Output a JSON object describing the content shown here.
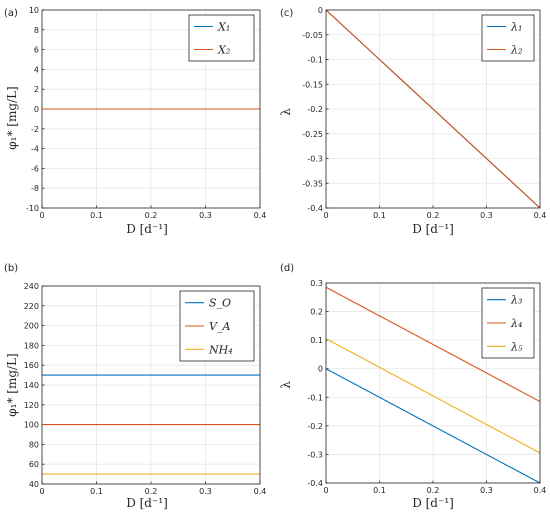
{
  "colors": {
    "blue": "#0072BD",
    "orange": "#D95319",
    "yellow": "#EDB120"
  },
  "panels": [
    {
      "label": "(a)",
      "ylabel": "φ₁* [mg/L]",
      "xlabel": "D [d⁻¹]"
    },
    {
      "label": "(c)",
      "ylabel": "λ",
      "xlabel": "D [d⁻¹]"
    },
    {
      "label": "(b)",
      "ylabel": "φ₁* [mg/L]",
      "xlabel": "D [d⁻¹]"
    },
    {
      "label": "(d)",
      "ylabel": "λ",
      "xlabel": "D [d⁻¹]"
    }
  ],
  "chart_data": [
    {
      "type": "line",
      "xlim": [
        0,
        0.4
      ],
      "ylim": [
        -10,
        10
      ],
      "xticks": [
        "0",
        "0.1",
        "0.2",
        "0.3",
        "0.4"
      ],
      "yticks": [
        "-10",
        "-8",
        "-6",
        "-4",
        "-2",
        "0",
        "2",
        "4",
        "6",
        "8",
        "10"
      ],
      "grid": true,
      "legend": "top-right",
      "series": [
        {
          "name": "X₁",
          "color": "blue",
          "x": [
            0,
            0.4
          ],
          "y": [
            0,
            0
          ]
        },
        {
          "name": "X₂",
          "color": "orange",
          "x": [
            0,
            0.4
          ],
          "y": [
            0,
            0
          ]
        }
      ]
    },
    {
      "type": "line",
      "xlim": [
        0,
        0.4
      ],
      "ylim": [
        -0.4,
        0
      ],
      "xticks": [
        "0",
        "0.1",
        "0.2",
        "0.3",
        "0.4"
      ],
      "yticks": [
        "-0.4",
        "-0.35",
        "-0.3",
        "-0.25",
        "-0.2",
        "-0.15",
        "-0.1",
        "-0.05",
        "0"
      ],
      "grid": true,
      "legend": "top-right",
      "series": [
        {
          "name": "λ₁",
          "color": "blue",
          "x": [
            0,
            0.4
          ],
          "y": [
            0,
            -0.4
          ]
        },
        {
          "name": "λ₂",
          "color": "orange",
          "x": [
            0,
            0.4
          ],
          "y": [
            0,
            -0.4
          ]
        }
      ]
    },
    {
      "type": "line",
      "xlim": [
        0,
        0.4
      ],
      "ylim": [
        40,
        240
      ],
      "xticks": [
        "0",
        "0.1",
        "0.2",
        "0.3",
        "0.4"
      ],
      "yticks": [
        "40",
        "60",
        "80",
        "100",
        "120",
        "140",
        "160",
        "180",
        "200",
        "220",
        "240"
      ],
      "grid": true,
      "legend": "top-right",
      "series": [
        {
          "name": "S_O",
          "color": "blue",
          "x": [
            0,
            0.4
          ],
          "y": [
            150,
            150
          ]
        },
        {
          "name": "V_A",
          "color": "orange",
          "x": [
            0,
            0.4
          ],
          "y": [
            100,
            100
          ]
        },
        {
          "name": "NH₄",
          "color": "yellow",
          "x": [
            0,
            0.4
          ],
          "y": [
            50,
            50
          ]
        }
      ]
    },
    {
      "type": "line",
      "xlim": [
        0,
        0.4
      ],
      "ylim": [
        -0.4,
        0.3
      ],
      "xticks": [
        "0",
        "0.1",
        "0.2",
        "0.3",
        "0.4"
      ],
      "yticks": [
        "-0.4",
        "-0.3",
        "-0.2",
        "-0.1",
        "0",
        "0.1",
        "0.2",
        "0.3"
      ],
      "grid": true,
      "legend": "top-right",
      "series": [
        {
          "name": "λ₃",
          "color": "blue",
          "x": [
            0,
            0.4
          ],
          "y": [
            0,
            -0.4
          ]
        },
        {
          "name": "λ₄",
          "color": "orange",
          "x": [
            0,
            0.4
          ],
          "y": [
            0.285,
            -0.115
          ]
        },
        {
          "name": "λ₅",
          "color": "yellow",
          "x": [
            0,
            0.4
          ],
          "y": [
            0.105,
            -0.295
          ]
        }
      ]
    }
  ]
}
